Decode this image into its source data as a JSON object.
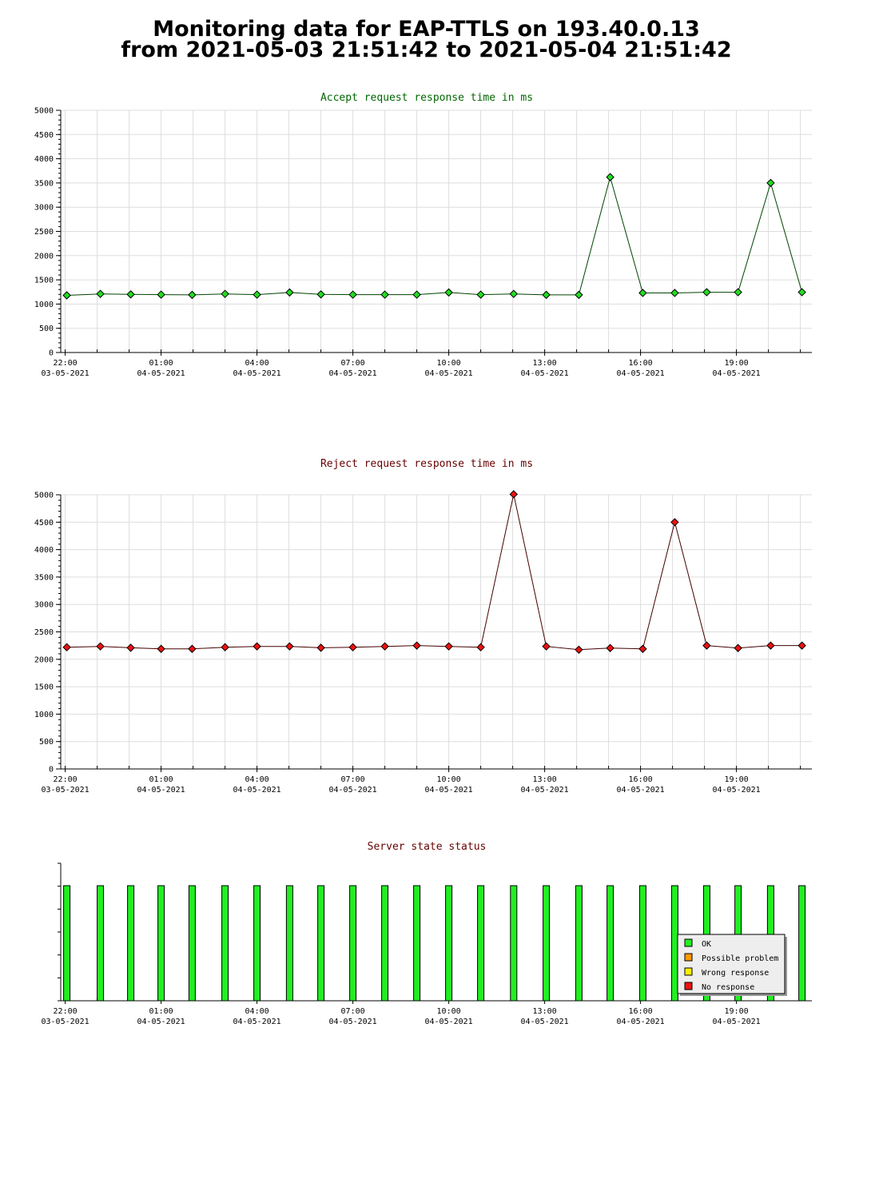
{
  "header": {
    "title_line1": "Monitoring data for EAP-TTLS on 193.40.0.13",
    "title_line2": "from 2021-05-03 21:51:42 to 2021-05-04 21:51:42"
  },
  "x_axis": {
    "ticks": [
      {
        "time": "22:00",
        "date": "03-05-2021",
        "hour": 22.0
      },
      {
        "time": "01:00",
        "date": "04-05-2021",
        "hour": 25.0
      },
      {
        "time": "04:00",
        "date": "04-05-2021",
        "hour": 28.0
      },
      {
        "time": "07:00",
        "date": "04-05-2021",
        "hour": 31.0
      },
      {
        "time": "10:00",
        "date": "04-05-2021",
        "hour": 34.0
      },
      {
        "time": "13:00",
        "date": "04-05-2021",
        "hour": 37.0
      },
      {
        "time": "16:00",
        "date": "04-05-2021",
        "hour": 40.0
      },
      {
        "time": "19:00",
        "date": "04-05-2021",
        "hour": 43.0
      }
    ],
    "minor_step_hours": 1,
    "range_hours": [
      21.86,
      45.36
    ]
  },
  "chart_data": [
    {
      "type": "line",
      "title": "Accept request response time in ms",
      "title_color": "#006600",
      "line_color": "#004400",
      "marker_color": "#22dd22",
      "ylim": [
        0,
        5000
      ],
      "ytick_step": 500,
      "grid": true,
      "x_hours": [
        22.05,
        23.1,
        24.05,
        25.0,
        25.97,
        27.0,
        28.0,
        29.02,
        30.0,
        31.0,
        32.0,
        33.0,
        34.0,
        35.0,
        36.03,
        37.05,
        38.07,
        39.05,
        40.07,
        41.07,
        42.07,
        43.05,
        44.07,
        45.05
      ],
      "values": [
        1180,
        1210,
        1200,
        1195,
        1190,
        1210,
        1195,
        1240,
        1200,
        1195,
        1195,
        1195,
        1240,
        1195,
        1210,
        1190,
        1190,
        3620,
        1230,
        1230,
        1245,
        1245,
        3500,
        1245
      ]
    },
    {
      "type": "line",
      "title": "Reject request response time in ms",
      "title_color": "#660000",
      "line_color": "#440000",
      "marker_color": "#ee1111",
      "ylim": [
        0,
        5000
      ],
      "ytick_step": 500,
      "grid": true,
      "x_hours": [
        22.05,
        23.1,
        24.05,
        25.0,
        25.97,
        27.0,
        28.0,
        29.02,
        30.0,
        31.0,
        32.0,
        33.0,
        34.0,
        35.0,
        36.03,
        37.05,
        38.07,
        39.05,
        40.07,
        41.07,
        42.07,
        43.05,
        44.07,
        45.05
      ],
      "values": [
        2220,
        2235,
        2210,
        2190,
        2190,
        2220,
        2235,
        2235,
        2210,
        2220,
        2235,
        2250,
        2235,
        2220,
        5010,
        2235,
        2175,
        2205,
        2190,
        4500,
        2250,
        2205,
        2250,
        2250
      ]
    },
    {
      "type": "bar",
      "title": "Server state status",
      "title_color": "#660000",
      "x_hours": [
        22.05,
        23.1,
        24.05,
        25.0,
        25.97,
        27.0,
        28.0,
        29.02,
        30.0,
        31.0,
        32.0,
        33.0,
        34.0,
        35.0,
        36.03,
        37.05,
        38.07,
        39.05,
        40.07,
        41.07,
        42.07,
        43.05,
        44.07,
        45.05
      ],
      "states": [
        "OK",
        "OK",
        "OK",
        "OK",
        "OK",
        "OK",
        "OK",
        "OK",
        "OK",
        "OK",
        "OK",
        "OK",
        "OK",
        "OK",
        "OK",
        "OK",
        "OK",
        "OK",
        "OK",
        "OK",
        "OK",
        "OK",
        "OK",
        "OK"
      ],
      "legend_position": "bottom-right",
      "legend": [
        {
          "label": "OK",
          "color": "#22ee22"
        },
        {
          "label": "Possible problem",
          "color": "#ff9900"
        },
        {
          "label": "Wrong response",
          "color": "#ffee00"
        },
        {
          "label": "No response",
          "color": "#ee1111"
        }
      ]
    }
  ]
}
